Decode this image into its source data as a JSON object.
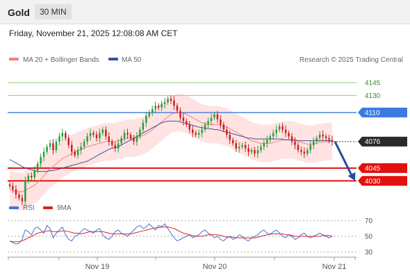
{
  "header": {
    "title": "Gold",
    "timeframe": "30 MIN"
  },
  "date_line": "Friday, November 21, 2025 12:08:08 AM CET",
  "legend": {
    "ma20": "MA 20 + Bollinger Bands",
    "ma50": "MA 50",
    "rsi": "RSI",
    "ma9": "9MA"
  },
  "source": "Research © 2025 Trading Central",
  "colors": {
    "up": "#2a9d3a",
    "down": "#cc1f1f",
    "ma20": "#f08080",
    "ma50": "#3a4f9a",
    "band": "#ffd9d9",
    "rsi": "#4a6fd6",
    "ma9": "#dd2222",
    "resistance": "#3a7be0",
    "support": "#e31010",
    "target": "#8fcf70",
    "current": "#2a2a2a",
    "arrow": "#1f4f9e"
  },
  "chart_data": {
    "type": "candlestick",
    "x_ticks": [
      "Nov 19",
      "Nov 20",
      "Nov 21"
    ],
    "y_range": [
      4018,
      4162
    ],
    "levels": [
      {
        "value": 4145,
        "label": "4145",
        "kind": "target"
      },
      {
        "value": 4130,
        "label": "4130",
        "kind": "target"
      },
      {
        "value": 4110,
        "label": "4110",
        "kind": "resistance"
      },
      {
        "value": 4076,
        "label": "4076",
        "kind": "current"
      },
      {
        "value": 4045,
        "label": "4045",
        "kind": "support"
      },
      {
        "value": 4030,
        "label": "4030",
        "kind": "support"
      }
    ],
    "forecast": {
      "from": 4076,
      "to": 4030
    },
    "closes": [
      4024,
      4020,
      4014,
      4010,
      4006,
      4030,
      4036,
      4034,
      4042,
      4050,
      4058,
      4064,
      4070,
      4074,
      4066,
      4076,
      4082,
      4086,
      4080,
      4072,
      4064,
      4060,
      4066,
      4070,
      4076,
      4082,
      4086,
      4084,
      4080,
      4086,
      4090,
      4082,
      4076,
      4072,
      4068,
      4074,
      4080,
      4086,
      4084,
      4080,
      4076,
      4082,
      4090,
      4098,
      4106,
      4110,
      4114,
      4118,
      4116,
      4120,
      4122,
      4126,
      4124,
      4118,
      4112,
      4104,
      4100,
      4096,
      4090,
      4086,
      4084,
      4086,
      4090,
      4096,
      4100,
      4104,
      4108,
      4102,
      4096,
      4090,
      4084,
      4078,
      4074,
      4068,
      4070,
      4072,
      4068,
      4064,
      4066,
      4062,
      4066,
      4070,
      4074,
      4078,
      4082,
      4086,
      4090,
      4094,
      4090,
      4086,
      4082,
      4076,
      4072,
      4066,
      4064,
      4062,
      4066,
      4072,
      4076,
      4080,
      4084,
      4082,
      4080,
      4078,
      4076
    ],
    "ma20": [
      4020,
      4019,
      4018,
      4018,
      4017,
      4019,
      4021,
      4023,
      4025,
      4028,
      4032,
      4036,
      4040,
      4044,
      4047,
      4050,
      4053,
      4056,
      4058,
      4060,
      4062,
      4064,
      4066,
      4067,
      4068,
      4070,
      4071,
      4072,
      4073,
      4074,
      4075,
      4076,
      4076,
      4076,
      4076,
      4077,
      4078,
      4079,
      4080,
      4080,
      4080,
      4081,
      4082,
      4083,
      4085,
      4087,
      4090,
      4093,
      4096,
      4099,
      4102,
      4105,
      4108,
      4109,
      4110,
      4110,
      4109,
      4108,
      4106,
      4104,
      4102,
      4100,
      4098,
      4097,
      4096,
      4096,
      4096,
      4096,
      4095,
      4094,
      4093,
      4091,
      4089,
      4087,
      4085,
      4083,
      4081,
      4079,
      4077,
      4076,
      4075,
      4074,
      4074,
      4074,
      4074,
      4075,
      4076,
      4077,
      4078,
      4078,
      4078,
      4078,
      4077,
      4076,
      4075,
      4074,
      4073,
      4073,
      4073,
      4074,
      4075,
      4075,
      4076,
      4076,
      4076
    ],
    "ma50": [
      4055,
      4053,
      4051,
      4049,
      4047,
      4045,
      4044,
      4043,
      4042,
      4041,
      4041,
      4041,
      4041,
      4042,
      4042,
      4043,
      4044,
      4045,
      4046,
      4047,
      4048,
      4049,
      4050,
      4051,
      4052,
      4053,
      4055,
      4057,
      4059,
      4061,
      4063,
      4065,
      4067,
      4068,
      4069,
      4070,
      4072,
      4074,
      4076,
      4078,
      4080,
      4082,
      4084,
      4086,
      4088,
      4090,
      4092,
      4094,
      4096,
      4098,
      4099,
      4100,
      4100,
      4100,
      4100,
      4099,
      4098,
      4097,
      4096,
      4095,
      4094,
      4093,
      4092,
      4092,
      4091,
      4091,
      4090,
      4090,
      4089,
      4088,
      4087,
      4086,
      4085,
      4084,
      4083,
      4082,
      4081,
      4080,
      4080,
      4079,
      4079,
      4079,
      4079,
      4079,
      4079,
      4079,
      4079,
      4079,
      4079,
      4078,
      4078,
      4078,
      4078,
      4077,
      4077,
      4077,
      4077,
      4077,
      4077,
      4077,
      4077,
      4077,
      4077,
      4077,
      4077
    ],
    "bb_width": 22,
    "rsi_axis": [
      70,
      50,
      30
    ],
    "rsi_range": [
      25,
      75
    ],
    "rsi": [
      44,
      42,
      40,
      41,
      46,
      58,
      56,
      52,
      60,
      62,
      58,
      54,
      64,
      60,
      48,
      54,
      58,
      62,
      52,
      46,
      44,
      50,
      52,
      56,
      60,
      58,
      56,
      54,
      58,
      60,
      52,
      48,
      46,
      50,
      56,
      58,
      54,
      52,
      50,
      54,
      58,
      62,
      64,
      60,
      62,
      66,
      62,
      58,
      64,
      62,
      66,
      60,
      54,
      48,
      44,
      46,
      48,
      50,
      52,
      48,
      50,
      52,
      56,
      58,
      54,
      52,
      48,
      50,
      46,
      44,
      48,
      50,
      46,
      48,
      52,
      50,
      46,
      44,
      48,
      50,
      52,
      56,
      58,
      54,
      52,
      56,
      58,
      54,
      50,
      48,
      52,
      50,
      46,
      48,
      52,
      54,
      50,
      48,
      50,
      52,
      54,
      52,
      50,
      48,
      50
    ],
    "ma9": [
      44,
      43,
      43,
      43,
      44,
      46,
      48,
      50,
      52,
      54,
      55,
      56,
      57,
      57,
      56,
      56,
      56,
      57,
      57,
      56,
      55,
      54,
      54,
      53,
      54,
      55,
      56,
      56,
      56,
      56,
      56,
      55,
      54,
      53,
      53,
      53,
      53,
      53,
      53,
      53,
      54,
      55,
      56,
      57,
      58,
      59,
      60,
      61,
      61,
      62,
      62,
      62,
      61,
      60,
      58,
      56,
      54,
      53,
      52,
      51,
      50,
      50,
      50,
      51,
      52,
      52,
      52,
      52,
      51,
      50,
      49,
      49,
      49,
      48,
      48,
      48,
      48,
      48,
      48,
      48,
      49,
      50,
      51,
      52,
      53,
      53,
      53,
      53,
      53,
      52,
      52,
      51,
      50,
      50,
      50,
      50,
      50,
      50,
      50,
      50,
      50,
      51,
      51,
      51,
      50
    ]
  }
}
